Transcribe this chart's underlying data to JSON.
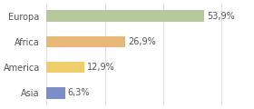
{
  "categories": [
    "Europa",
    "Africa",
    "America",
    "Asia"
  ],
  "values": [
    53.9,
    26.9,
    12.9,
    6.3
  ],
  "labels": [
    "53,9%",
    "26,9%",
    "12,9%",
    "6,3%"
  ],
  "bar_colors": [
    "#b5c99a",
    "#e8b87a",
    "#f0cf6a",
    "#7b8ec8"
  ],
  "background_color": "#ffffff",
  "xlim": [
    0,
    70
  ],
  "bar_height": 0.45,
  "label_fontsize": 7.0,
  "category_fontsize": 7.0,
  "grid_color": "#dddddd",
  "text_color": "#555555"
}
